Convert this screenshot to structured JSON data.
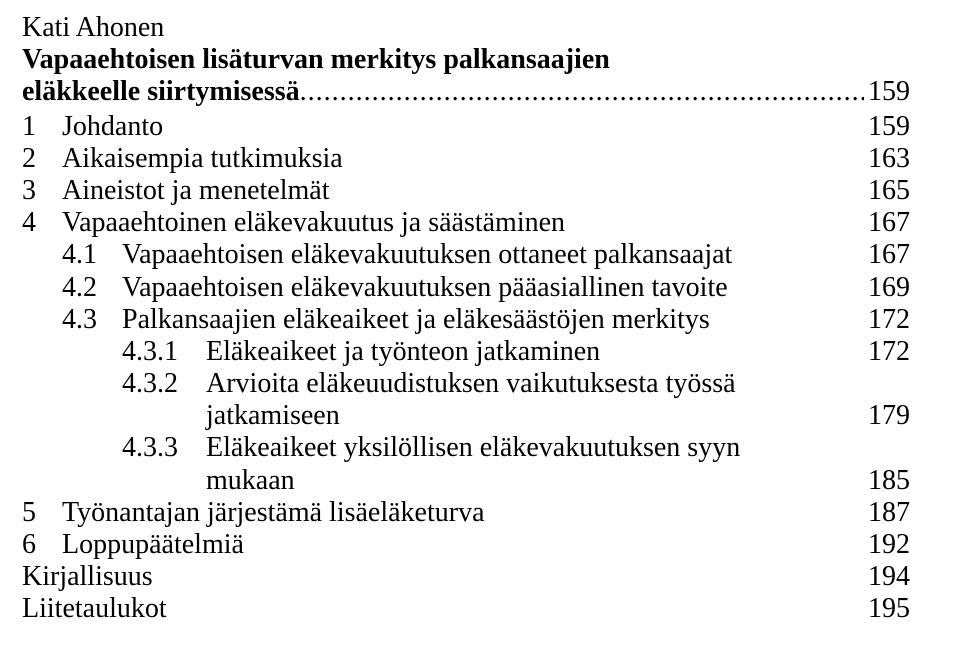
{
  "author": "Kati Ahonen",
  "title_line1": "Vapaaehtoisen lisäturvan merkitys palkansaajien",
  "title_line2_lead": "eläkkeelle siirtymisessä",
  "title_page": "159",
  "dots": "..................................................................................................",
  "toc": [
    {
      "lvl": 1,
      "num": "1",
      "label": "Johdanto",
      "pg": "159"
    },
    {
      "lvl": 1,
      "num": "2",
      "label": "Aikaisempia tutkimuksia",
      "pg": "163"
    },
    {
      "lvl": 1,
      "num": "3",
      "label": "Aineistot ja menetelmät",
      "pg": "165"
    },
    {
      "lvl": 1,
      "num": "4",
      "label": "Vapaaehtoinen eläkevakuutus ja säästäminen",
      "pg": "167"
    },
    {
      "lvl": 2,
      "num": "4.1",
      "label": "Vapaaehtoisen eläkevakuutuksen ottaneet palkansaajat",
      "pg": "167"
    },
    {
      "lvl": 2,
      "num": "4.2",
      "label": "Vapaaehtoisen eläkevakuutuksen pääasiallinen tavoite",
      "pg": "169"
    },
    {
      "lvl": 2,
      "num": "4.3",
      "label": "Palkansaajien eläkeaikeet ja eläkesäästöjen merkitys",
      "pg": "172"
    },
    {
      "lvl": 3,
      "num": "4.3.1",
      "label": "Eläkeaikeet ja työnteon jatkaminen",
      "pg": "172"
    },
    {
      "lvl": 3,
      "num": "4.3.2",
      "label": "Arvioita eläkeuudistuksen vaikutuksesta työssä",
      "pg": ""
    },
    {
      "lvl": "3cont",
      "num": "",
      "label": "jatkamiseen",
      "pg": "179"
    },
    {
      "lvl": 3,
      "num": "4.3.3",
      "label": "Eläkeaikeet yksilöllisen eläkevakuutuksen syyn",
      "pg": ""
    },
    {
      "lvl": "3cont",
      "num": "",
      "label": "mukaan",
      "pg": "185"
    },
    {
      "lvl": 1,
      "num": "5",
      "label": "Työnantajan järjestämä lisäeläketurva",
      "pg": "187"
    },
    {
      "lvl": 1,
      "num": "6",
      "label": "Loppupäätelmiä",
      "pg": "192"
    },
    {
      "lvl": "plain",
      "num": "",
      "label": "Kirjallisuus",
      "pg": "194"
    },
    {
      "lvl": "plain",
      "num": "",
      "label": "Liitetaulukot",
      "pg": "195"
    }
  ]
}
